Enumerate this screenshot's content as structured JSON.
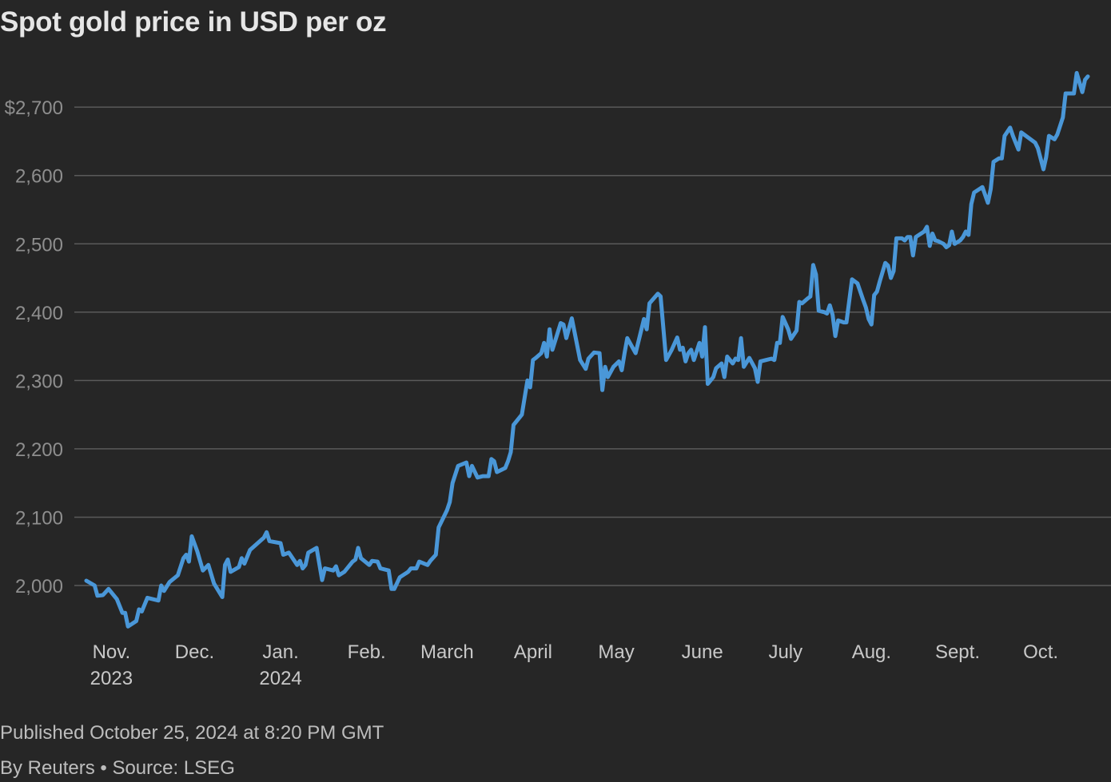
{
  "title": "Spot gold price in USD per oz",
  "footer": {
    "published": "Published October 25, 2024 at 8:20 PM GMT",
    "credit": "By Reuters • Source: LSEG"
  },
  "colors": {
    "background": "#262626",
    "line": "#4a97d8",
    "grid": "#5a5a5a"
  },
  "chart_data": {
    "type": "line",
    "title": "Spot gold price in USD per oz",
    "xlabel": "",
    "ylabel": "USD per oz",
    "ylim": [
      1925,
      2760
    ],
    "xlim": [
      0,
      360
    ],
    "grid": true,
    "yticks": [
      {
        "value": 2000,
        "label": "2,000"
      },
      {
        "value": 2100,
        "label": "2,100"
      },
      {
        "value": 2200,
        "label": "2,200"
      },
      {
        "value": 2300,
        "label": "2,300"
      },
      {
        "value": 2400,
        "label": "2,400"
      },
      {
        "value": 2500,
        "label": "2,500"
      },
      {
        "value": 2600,
        "label": "2,600"
      },
      {
        "value": 2700,
        "label": "$2,700"
      }
    ],
    "xticks": [
      {
        "value": 5,
        "label": "Nov.",
        "sublabel": "2023"
      },
      {
        "value": 35,
        "label": "Dec.",
        "sublabel": ""
      },
      {
        "value": 66,
        "label": "Jan.",
        "sublabel": "2024"
      },
      {
        "value": 97,
        "label": "Feb.",
        "sublabel": ""
      },
      {
        "value": 126,
        "label": "March",
        "sublabel": ""
      },
      {
        "value": 157,
        "label": "April",
        "sublabel": ""
      },
      {
        "value": 187,
        "label": "May",
        "sublabel": ""
      },
      {
        "value": 218,
        "label": "June",
        "sublabel": ""
      },
      {
        "value": 248,
        "label": "July",
        "sublabel": ""
      },
      {
        "value": 279,
        "label": "Aug.",
        "sublabel": ""
      },
      {
        "value": 310,
        "label": "Sept.",
        "sublabel": ""
      },
      {
        "value": 340,
        "label": "Oct.",
        "sublabel": ""
      }
    ],
    "series": [
      {
        "name": "Spot gold",
        "points": [
          [
            0,
            2007
          ],
          [
            3,
            2000
          ],
          [
            4,
            1985
          ],
          [
            6,
            1986
          ],
          [
            8,
            1995
          ],
          [
            11,
            1980
          ],
          [
            13,
            1960
          ],
          [
            14,
            1960
          ],
          [
            15,
            1940
          ],
          [
            18,
            1948
          ],
          [
            19,
            1965
          ],
          [
            20,
            1962
          ],
          [
            22,
            1982
          ],
          [
            26,
            1978
          ],
          [
            27,
            2000
          ],
          [
            28,
            1992
          ],
          [
            30,
            2005
          ],
          [
            33,
            2015
          ],
          [
            35,
            2040
          ],
          [
            36,
            2045
          ],
          [
            37,
            2035
          ],
          [
            38,
            2072
          ],
          [
            40,
            2050
          ],
          [
            42,
            2022
          ],
          [
            44,
            2030
          ],
          [
            46,
            2003
          ],
          [
            49,
            1983
          ],
          [
            50,
            2030
          ],
          [
            51,
            2038
          ],
          [
            52,
            2020
          ],
          [
            55,
            2027
          ],
          [
            56,
            2040
          ],
          [
            57,
            2032
          ],
          [
            59,
            2052
          ],
          [
            64,
            2070
          ],
          [
            65,
            2078
          ],
          [
            66,
            2065
          ],
          [
            70,
            2062
          ],
          [
            71,
            2045
          ],
          [
            73,
            2048
          ],
          [
            76,
            2030
          ],
          [
            77,
            2036
          ],
          [
            78,
            2025
          ],
          [
            79,
            2030
          ],
          [
            80,
            2048
          ],
          [
            83,
            2055
          ],
          [
            85,
            2008
          ],
          [
            86,
            2025
          ],
          [
            89,
            2022
          ],
          [
            90,
            2028
          ],
          [
            91,
            2015
          ],
          [
            93,
            2020
          ],
          [
            96,
            2035
          ],
          [
            97,
            2038
          ],
          [
            98,
            2055
          ],
          [
            99,
            2040
          ],
          [
            102,
            2030
          ],
          [
            103,
            2036
          ],
          [
            105,
            2035
          ],
          [
            106,
            2025
          ],
          [
            109,
            2022
          ],
          [
            110,
            1995
          ],
          [
            111,
            1995
          ],
          [
            113,
            2012
          ],
          [
            116,
            2020
          ],
          [
            117,
            2025
          ],
          [
            119,
            2025
          ],
          [
            120,
            2035
          ],
          [
            123,
            2030
          ],
          [
            124,
            2036
          ],
          [
            126,
            2045
          ],
          [
            127,
            2085
          ],
          [
            130,
            2110
          ],
          [
            131,
            2122
          ],
          [
            132,
            2150
          ],
          [
            134,
            2175
          ],
          [
            137,
            2180
          ],
          [
            138,
            2160
          ],
          [
            139,
            2175
          ],
          [
            141,
            2158
          ],
          [
            143,
            2160
          ],
          [
            145,
            2160
          ],
          [
            146,
            2185
          ],
          [
            147,
            2182
          ],
          [
            148,
            2166
          ],
          [
            151,
            2172
          ],
          [
            152,
            2182
          ],
          [
            153,
            2195
          ],
          [
            154,
            2235
          ],
          [
            157,
            2250
          ],
          [
            159,
            2300
          ],
          [
            160,
            2290
          ],
          [
            161,
            2330
          ],
          [
            162,
            2333
          ],
          [
            164,
            2340
          ],
          [
            165,
            2355
          ],
          [
            166,
            2335
          ],
          [
            167,
            2375
          ],
          [
            168,
            2345
          ],
          [
            171,
            2384
          ],
          [
            172,
            2382
          ],
          [
            173,
            2362
          ],
          [
            175,
            2391
          ],
          [
            178,
            2330
          ],
          [
            180,
            2317
          ],
          [
            181,
            2332
          ],
          [
            183,
            2341
          ],
          [
            185,
            2340
          ],
          [
            186,
            2286
          ],
          [
            187,
            2320
          ],
          [
            188,
            2305
          ],
          [
            190,
            2320
          ],
          [
            192,
            2328
          ],
          [
            193,
            2315
          ],
          [
            194,
            2340
          ],
          [
            195,
            2362
          ],
          [
            198,
            2340
          ],
          [
            201,
            2390
          ],
          [
            202,
            2375
          ],
          [
            203,
            2413
          ],
          [
            206,
            2427
          ],
          [
            207,
            2423
          ],
          [
            209,
            2330
          ],
          [
            211,
            2345
          ],
          [
            213,
            2363
          ],
          [
            214,
            2345
          ],
          [
            215,
            2348
          ],
          [
            216,
            2328
          ],
          [
            217,
            2340
          ],
          [
            218,
            2345
          ],
          [
            219,
            2330
          ],
          [
            221,
            2355
          ],
          [
            222,
            2335
          ],
          [
            223,
            2378
          ],
          [
            224,
            2295
          ],
          [
            226,
            2305
          ],
          [
            227,
            2318
          ],
          [
            229,
            2325
          ],
          [
            230,
            2305
          ],
          [
            231,
            2335
          ],
          [
            233,
            2325
          ],
          [
            234,
            2332
          ],
          [
            235,
            2330
          ],
          [
            236,
            2362
          ],
          [
            237,
            2320
          ],
          [
            239,
            2333
          ],
          [
            241,
            2318
          ],
          [
            242,
            2298
          ],
          [
            243,
            2328
          ],
          [
            245,
            2330
          ],
          [
            247,
            2332
          ],
          [
            248,
            2330
          ],
          [
            249,
            2355
          ],
          [
            250,
            2355
          ],
          [
            251,
            2393
          ],
          [
            253,
            2375
          ],
          [
            254,
            2361
          ],
          [
            256,
            2373
          ],
          [
            257,
            2415
          ],
          [
            258,
            2413
          ],
          [
            260,
            2420
          ],
          [
            261,
            2423
          ],
          [
            262,
            2469
          ],
          [
            263,
            2455
          ],
          [
            264,
            2402
          ],
          [
            266,
            2400
          ],
          [
            267,
            2398
          ],
          [
            268,
            2410
          ],
          [
            269,
            2396
          ],
          [
            270,
            2365
          ],
          [
            271,
            2388
          ],
          [
            273,
            2385
          ],
          [
            274,
            2385
          ],
          [
            276,
            2448
          ],
          [
            278,
            2442
          ],
          [
            280,
            2418
          ],
          [
            281,
            2407
          ],
          [
            282,
            2390
          ],
          [
            283,
            2382
          ],
          [
            284,
            2425
          ],
          [
            285,
            2430
          ],
          [
            286,
            2445
          ],
          [
            288,
            2472
          ],
          [
            289,
            2468
          ],
          [
            290,
            2450
          ],
          [
            291,
            2460
          ],
          [
            292,
            2508
          ],
          [
            294,
            2508
          ],
          [
            295,
            2505
          ],
          [
            296,
            2510
          ],
          [
            297,
            2510
          ],
          [
            298,
            2483
          ],
          [
            299,
            2510
          ],
          [
            302,
            2518
          ],
          [
            303,
            2525
          ],
          [
            304,
            2497
          ],
          [
            305,
            2515
          ],
          [
            306,
            2505
          ],
          [
            307,
            2504
          ],
          [
            309,
            2500
          ],
          [
            310,
            2495
          ],
          [
            311,
            2498
          ],
          [
            312,
            2518
          ],
          [
            313,
            2500
          ],
          [
            315,
            2505
          ],
          [
            316,
            2510
          ],
          [
            317,
            2518
          ],
          [
            318,
            2513
          ],
          [
            319,
            2558
          ],
          [
            320,
            2575
          ],
          [
            323,
            2583
          ],
          [
            325,
            2560
          ],
          [
            326,
            2580
          ],
          [
            327,
            2620
          ],
          [
            329,
            2625
          ],
          [
            330,
            2625
          ],
          [
            331,
            2658
          ],
          [
            333,
            2670
          ],
          [
            334,
            2658
          ],
          [
            336,
            2638
          ],
          [
            337,
            2663
          ],
          [
            342,
            2648
          ],
          [
            343,
            2640
          ],
          [
            345,
            2609
          ],
          [
            346,
            2627
          ],
          [
            347,
            2658
          ],
          [
            349,
            2653
          ],
          [
            350,
            2660
          ],
          [
            352,
            2685
          ],
          [
            353,
            2720
          ],
          [
            356,
            2720
          ],
          [
            357,
            2750
          ],
          [
            358,
            2736
          ],
          [
            359,
            2722
          ],
          [
            360,
            2740
          ],
          [
            361,
            2745
          ]
        ]
      }
    ]
  }
}
